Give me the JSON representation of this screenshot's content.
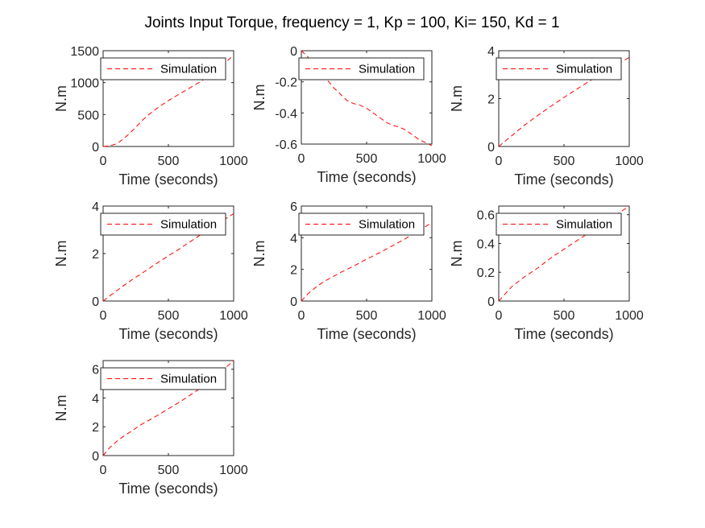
{
  "figure": {
    "title": "Joints Input Torque, frequency = 1, Kp = 100, Ki= 150, Kd = 1"
  },
  "chart_data": [
    {
      "type": "line",
      "xlabel": "Time (seconds)",
      "ylabel": "N.m",
      "xlim": [
        0,
        1000
      ],
      "ylim": [
        0,
        1500
      ],
      "xticks": [
        "0",
        "500",
        "1000"
      ],
      "yticks": [
        "0",
        "500",
        "1000",
        "1500"
      ],
      "legend": "top-left",
      "series": [
        {
          "name": "Simulation",
          "color": "#ff0000",
          "style": "dashed",
          "x": [
            0,
            50,
            100,
            150,
            200,
            250,
            300,
            350,
            400,
            450,
            500,
            550,
            600,
            650,
            700,
            750,
            800,
            850,
            900,
            950,
            1000
          ],
          "y": [
            0,
            10,
            40,
            110,
            200,
            300,
            410,
            500,
            580,
            650,
            720,
            780,
            840,
            900,
            960,
            1020,
            1090,
            1160,
            1250,
            1340,
            1430
          ]
        }
      ]
    },
    {
      "type": "line",
      "xlabel": "Time (seconds)",
      "ylabel": "N.m",
      "xlim": [
        0,
        1000
      ],
      "ylim": [
        -0.6,
        0
      ],
      "xticks": [
        "0",
        "500",
        "1000"
      ],
      "yticks": [
        "-0.6",
        "-0.4",
        "-0.2",
        "0"
      ],
      "legend": "top-left",
      "series": [
        {
          "name": "Simulation",
          "color": "#ff0000",
          "style": "dashed",
          "x": [
            0,
            50,
            100,
            150,
            200,
            250,
            300,
            350,
            400,
            450,
            500,
            550,
            600,
            650,
            700,
            750,
            800,
            850,
            900,
            950,
            1000
          ],
          "y": [
            0,
            -0.04,
            -0.09,
            -0.14,
            -0.19,
            -0.24,
            -0.28,
            -0.32,
            -0.34,
            -0.35,
            -0.37,
            -0.4,
            -0.43,
            -0.46,
            -0.48,
            -0.49,
            -0.51,
            -0.54,
            -0.57,
            -0.59,
            -0.61
          ]
        }
      ]
    },
    {
      "type": "line",
      "xlabel": "Time (seconds)",
      "ylabel": "N.m",
      "xlim": [
        0,
        1000
      ],
      "ylim": [
        0,
        4
      ],
      "xticks": [
        "0",
        "500",
        "1000"
      ],
      "yticks": [
        "0",
        "2",
        "4"
      ],
      "legend": "top-left",
      "series": [
        {
          "name": "Simulation",
          "color": "#ff0000",
          "style": "dashed",
          "x": [
            0,
            100,
            200,
            300,
            400,
            500,
            600,
            700,
            800,
            900,
            1000
          ],
          "y": [
            0,
            0.45,
            0.9,
            1.3,
            1.68,
            2.05,
            2.4,
            2.75,
            3.08,
            3.4,
            3.72
          ]
        }
      ]
    },
    {
      "type": "line",
      "xlabel": "Time (seconds)",
      "ylabel": "N.m",
      "xlim": [
        0,
        1000
      ],
      "ylim": [
        0,
        4
      ],
      "xticks": [
        "0",
        "500",
        "1000"
      ],
      "yticks": [
        "0",
        "2",
        "4"
      ],
      "legend": "top-left",
      "series": [
        {
          "name": "Simulation",
          "color": "#ff0000",
          "style": "dashed",
          "x": [
            0,
            100,
            200,
            300,
            400,
            500,
            600,
            700,
            800,
            900,
            1000
          ],
          "y": [
            0,
            0.42,
            0.82,
            1.18,
            1.55,
            1.9,
            2.25,
            2.62,
            2.98,
            3.33,
            3.68
          ]
        }
      ]
    },
    {
      "type": "line",
      "xlabel": "Time (seconds)",
      "ylabel": "N.m",
      "xlim": [
        0,
        1000
      ],
      "ylim": [
        0,
        6
      ],
      "xticks": [
        "0",
        "500",
        "1000"
      ],
      "yticks": [
        "0",
        "2",
        "4",
        "6"
      ],
      "legend": "top-left",
      "series": [
        {
          "name": "Simulation",
          "color": "#ff0000",
          "style": "dashed",
          "x": [
            0,
            50,
            100,
            150,
            200,
            300,
            400,
            500,
            600,
            700,
            800,
            900,
            1000
          ],
          "y": [
            0,
            0.45,
            0.8,
            1.1,
            1.35,
            1.8,
            2.2,
            2.65,
            3.05,
            3.5,
            3.95,
            4.45,
            4.95
          ]
        }
      ]
    },
    {
      "type": "line",
      "xlabel": "Time (seconds)",
      "ylabel": "N.m",
      "xlim": [
        0,
        1000
      ],
      "ylim": [
        0,
        0.66
      ],
      "xticks": [
        "0",
        "500",
        "1000"
      ],
      "yticks": [
        "0",
        "0.2",
        "0.4",
        "0.6"
      ],
      "legend": "top-left",
      "series": [
        {
          "name": "Simulation",
          "color": "#ff0000",
          "style": "dashed",
          "x": [
            0,
            100,
            200,
            300,
            400,
            500,
            600,
            700,
            800,
            900,
            1000
          ],
          "y": [
            0,
            0.1,
            0.17,
            0.23,
            0.3,
            0.36,
            0.42,
            0.48,
            0.54,
            0.6,
            0.66
          ]
        }
      ]
    },
    {
      "type": "line",
      "xlabel": "Time (seconds)",
      "ylabel": "N.m",
      "xlim": [
        0,
        1000
      ],
      "ylim": [
        0,
        6.6
      ],
      "xticks": [
        "0",
        "500",
        "1000"
      ],
      "yticks": [
        "0",
        "2",
        "4",
        "6"
      ],
      "legend": "top-left",
      "series": [
        {
          "name": "Simulation",
          "color": "#ff0000",
          "style": "dashed",
          "x": [
            0,
            50,
            100,
            150,
            200,
            300,
            400,
            500,
            600,
            700,
            800,
            900,
            1000
          ],
          "y": [
            0,
            0.55,
            0.95,
            1.3,
            1.6,
            2.2,
            2.7,
            3.25,
            3.8,
            4.4,
            5.0,
            5.8,
            6.6
          ]
        }
      ]
    }
  ]
}
